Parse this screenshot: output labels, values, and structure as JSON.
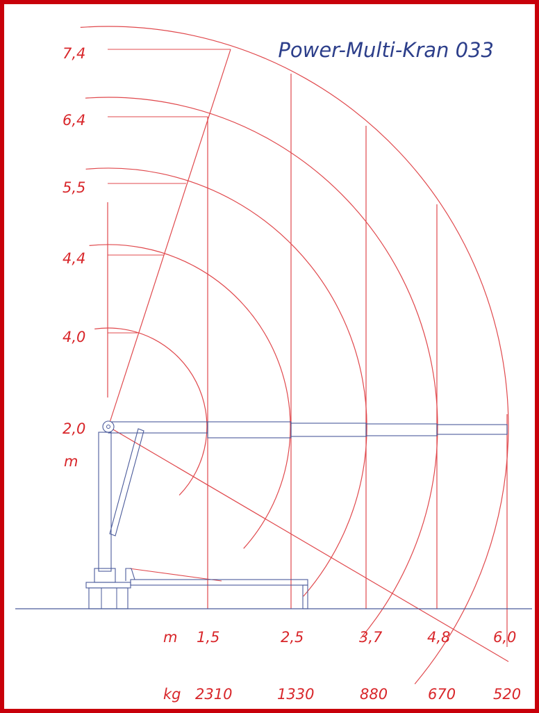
{
  "title": "Power-Multi-Kran 033",
  "height_unit": "m",
  "heights": [
    "7,4",
    "6,4",
    "5,5",
    "4,4",
    "4,0",
    "2,0"
  ],
  "reach_unit": "m",
  "reaches": [
    "1,5",
    "2,5",
    "3,7",
    "4,8",
    "6,0"
  ],
  "load_unit": "kg",
  "loads": [
    "2310",
    "1330",
    "880",
    "670",
    "520"
  ],
  "colors": {
    "frame": "#c8000a",
    "lines": "#e0484c",
    "labels": "#d8262a",
    "crane": "#4a5a9a",
    "title": "#2c3e8a"
  },
  "chart_data": {
    "type": "table",
    "title": "Power-Multi-Kran 033",
    "columns": [
      "reach_m",
      "load_kg"
    ],
    "rows": [
      [
        "1,5",
        "2310"
      ],
      [
        "2,5",
        "1330"
      ],
      [
        "3,7",
        "880"
      ],
      [
        "4,8",
        "670"
      ],
      [
        "6,0",
        "520"
      ]
    ],
    "hook_heights_m": [
      "7,4",
      "6,4",
      "5,5",
      "4,4",
      "4,0"
    ],
    "boom_pivot_height_m": "2,0"
  }
}
